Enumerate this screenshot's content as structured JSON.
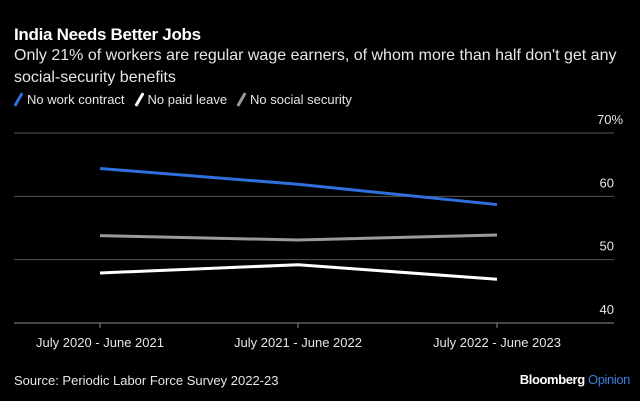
{
  "chart_data": {
    "type": "line",
    "title": "India Needs Better Jobs",
    "subtitle": "Only 21% of workers are regular wage earners, of whom more than half don't get any social-security benefits",
    "categories": [
      "July 2020 - June 2021",
      "July 2021 - June 2022",
      "July 2022 - June 2023"
    ],
    "series": [
      {
        "name": "No work contract",
        "color": "#2f6fde",
        "values": [
          64.4,
          61.9,
          58.7
        ]
      },
      {
        "name": "No paid leave",
        "color": "#ffffff",
        "values": [
          47.9,
          49.2,
          46.9
        ]
      },
      {
        "name": "No social security",
        "color": "#9a9a9a",
        "values": [
          53.8,
          53.1,
          53.9
        ]
      }
    ],
    "yticks": [
      {
        "value": 70,
        "label": "70%"
      },
      {
        "value": 60,
        "label": "60"
      },
      {
        "value": 50,
        "label": "50"
      },
      {
        "value": 40,
        "label": "40"
      }
    ],
    "ylim": [
      40,
      70
    ],
    "xlabel": "",
    "ylabel": "",
    "grid": true,
    "legend": "top-left",
    "source": "Source: Periodic Labor Force Survey 2022-23"
  },
  "brand": {
    "name": "Bloomberg",
    "section": "Opinion"
  }
}
